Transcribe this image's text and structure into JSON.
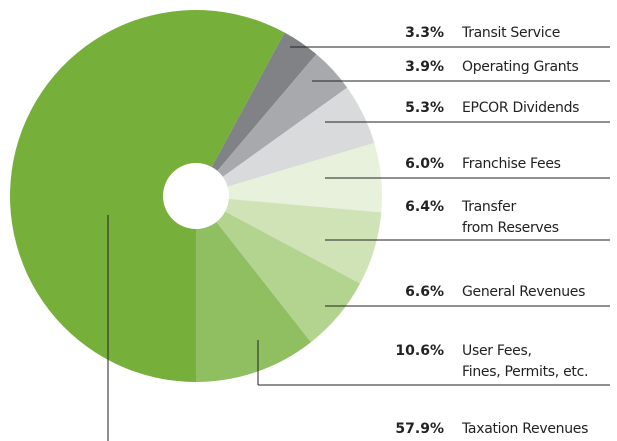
{
  "chart_data": {
    "type": "pie",
    "categories": [
      "Transit Service",
      "Operating Grants",
      "EPCOR Dividends",
      "Franchise Fees",
      "Transfer\nfrom Reserves",
      "General Revenues",
      "User Fees,\nFines, Permits, etc.",
      "Taxation Revenues"
    ],
    "values": [
      3.3,
      3.9,
      5.3,
      6.0,
      6.4,
      6.6,
      10.6,
      57.9
    ],
    "value_labels": [
      "3.3%",
      "3.9%",
      "5.3%",
      "6.0%",
      "6.4%",
      "6.6%",
      "10.6%",
      "57.9%"
    ],
    "colors": [
      "#808285",
      "#a7a9ac",
      "#d9dadb",
      "#e8f1dc",
      "#cfe3b7",
      "#b3d48e",
      "#8fbf60",
      "#76b03a"
    ]
  }
}
